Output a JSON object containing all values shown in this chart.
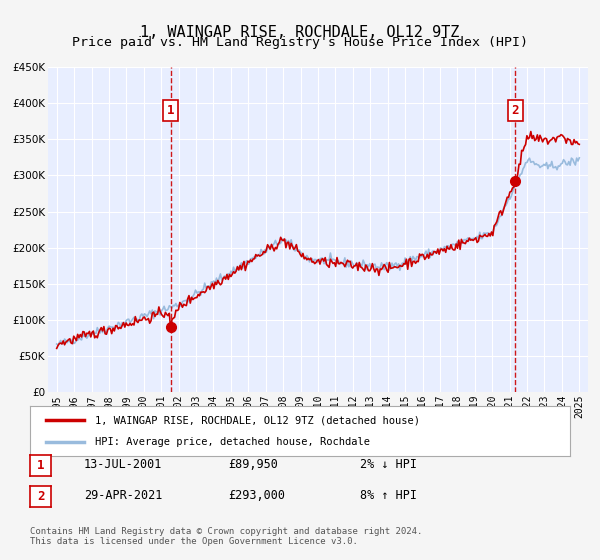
{
  "title": "1, WAINGAP RISE, ROCHDALE, OL12 9TZ",
  "subtitle": "Price paid vs. HM Land Registry's House Price Index (HPI)",
  "xlabel": "",
  "ylabel": "",
  "ylim": [
    0,
    450000
  ],
  "yticks": [
    0,
    50000,
    100000,
    150000,
    200000,
    250000,
    300000,
    350000,
    400000,
    450000
  ],
  "ytick_labels": [
    "£0",
    "£50K",
    "£100K",
    "£150K",
    "£200K",
    "£250K",
    "£300K",
    "£350K",
    "£400K",
    "£450K"
  ],
  "xlim_start": 1994.5,
  "xlim_end": 2025.5,
  "xticks": [
    1995,
    1996,
    1997,
    1998,
    1999,
    2000,
    2001,
    2002,
    2003,
    2004,
    2005,
    2006,
    2007,
    2008,
    2009,
    2010,
    2011,
    2012,
    2013,
    2014,
    2015,
    2016,
    2017,
    2018,
    2019,
    2020,
    2021,
    2022,
    2023,
    2024,
    2025
  ],
  "background_color": "#f0f4ff",
  "plot_bg_color": "#e8eeff",
  "grid_color": "#ffffff",
  "red_line_color": "#cc0000",
  "blue_line_color": "#99bbdd",
  "marker1_x": 2001.54,
  "marker1_y": 89950,
  "marker2_x": 2021.33,
  "marker2_y": 293000,
  "vline1_x": 2001.54,
  "vline2_x": 2021.33,
  "vline_color": "#cc0000",
  "label1_text": "1",
  "label2_text": "2",
  "legend_red_label": "1, WAINGAP RISE, ROCHDALE, OL12 9TZ (detached house)",
  "legend_blue_label": "HPI: Average price, detached house, Rochdale",
  "table_row1": [
    "1",
    "13-JUL-2001",
    "£89,950",
    "2% ↓ HPI"
  ],
  "table_row2": [
    "2",
    "29-APR-2021",
    "£293,000",
    "8% ↑ HPI"
  ],
  "footnote": "Contains HM Land Registry data © Crown copyright and database right 2024.\nThis data is licensed under the Open Government Licence v3.0.",
  "title_fontsize": 11,
  "subtitle_fontsize": 9.5
}
